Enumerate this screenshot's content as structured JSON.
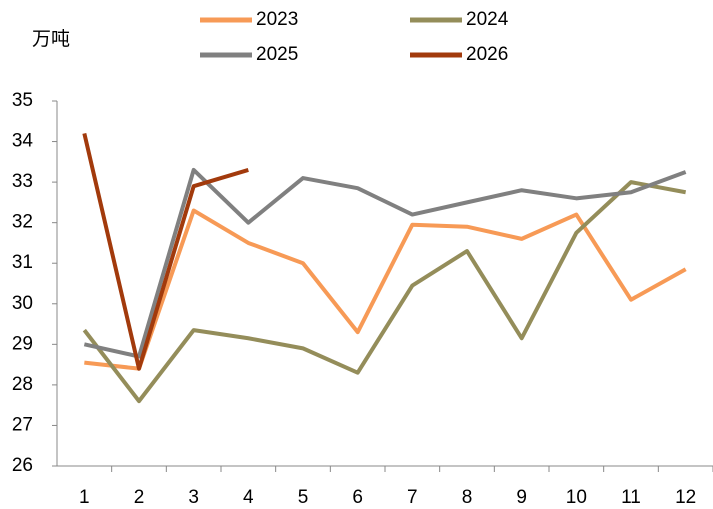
{
  "chart_data": {
    "type": "line",
    "y_label": "万吨",
    "categories": [
      "1",
      "2",
      "3",
      "4",
      "5",
      "6",
      "7",
      "8",
      "9",
      "10",
      "11",
      "12"
    ],
    "series": [
      {
        "name": "2023",
        "color": "#f79a56",
        "values": [
          28.55,
          28.4,
          32.3,
          31.5,
          31.0,
          29.3,
          31.95,
          31.9,
          31.6,
          32.2,
          30.1,
          30.85
        ]
      },
      {
        "name": "2024",
        "color": "#948d5a",
        "values": [
          29.35,
          27.6,
          29.35,
          29.15,
          28.9,
          28.3,
          30.45,
          31.3,
          29.15,
          31.75,
          33.0,
          32.75
        ]
      },
      {
        "name": "2025",
        "color": "#808080",
        "values": [
          29.0,
          28.7,
          33.3,
          32.0,
          33.1,
          32.85,
          32.2,
          32.5,
          32.8,
          32.6,
          32.75,
          33.25
        ]
      },
      {
        "name": "2026",
        "color": "#a23a0c",
        "values": [
          34.2,
          28.4,
          32.9,
          33.3,
          null,
          null,
          null,
          null,
          null,
          null,
          null,
          null
        ]
      }
    ],
    "ylim": [
      26,
      35
    ],
    "yticks": [
      26,
      27,
      28,
      29,
      30,
      31,
      32,
      33,
      34,
      35
    ]
  }
}
